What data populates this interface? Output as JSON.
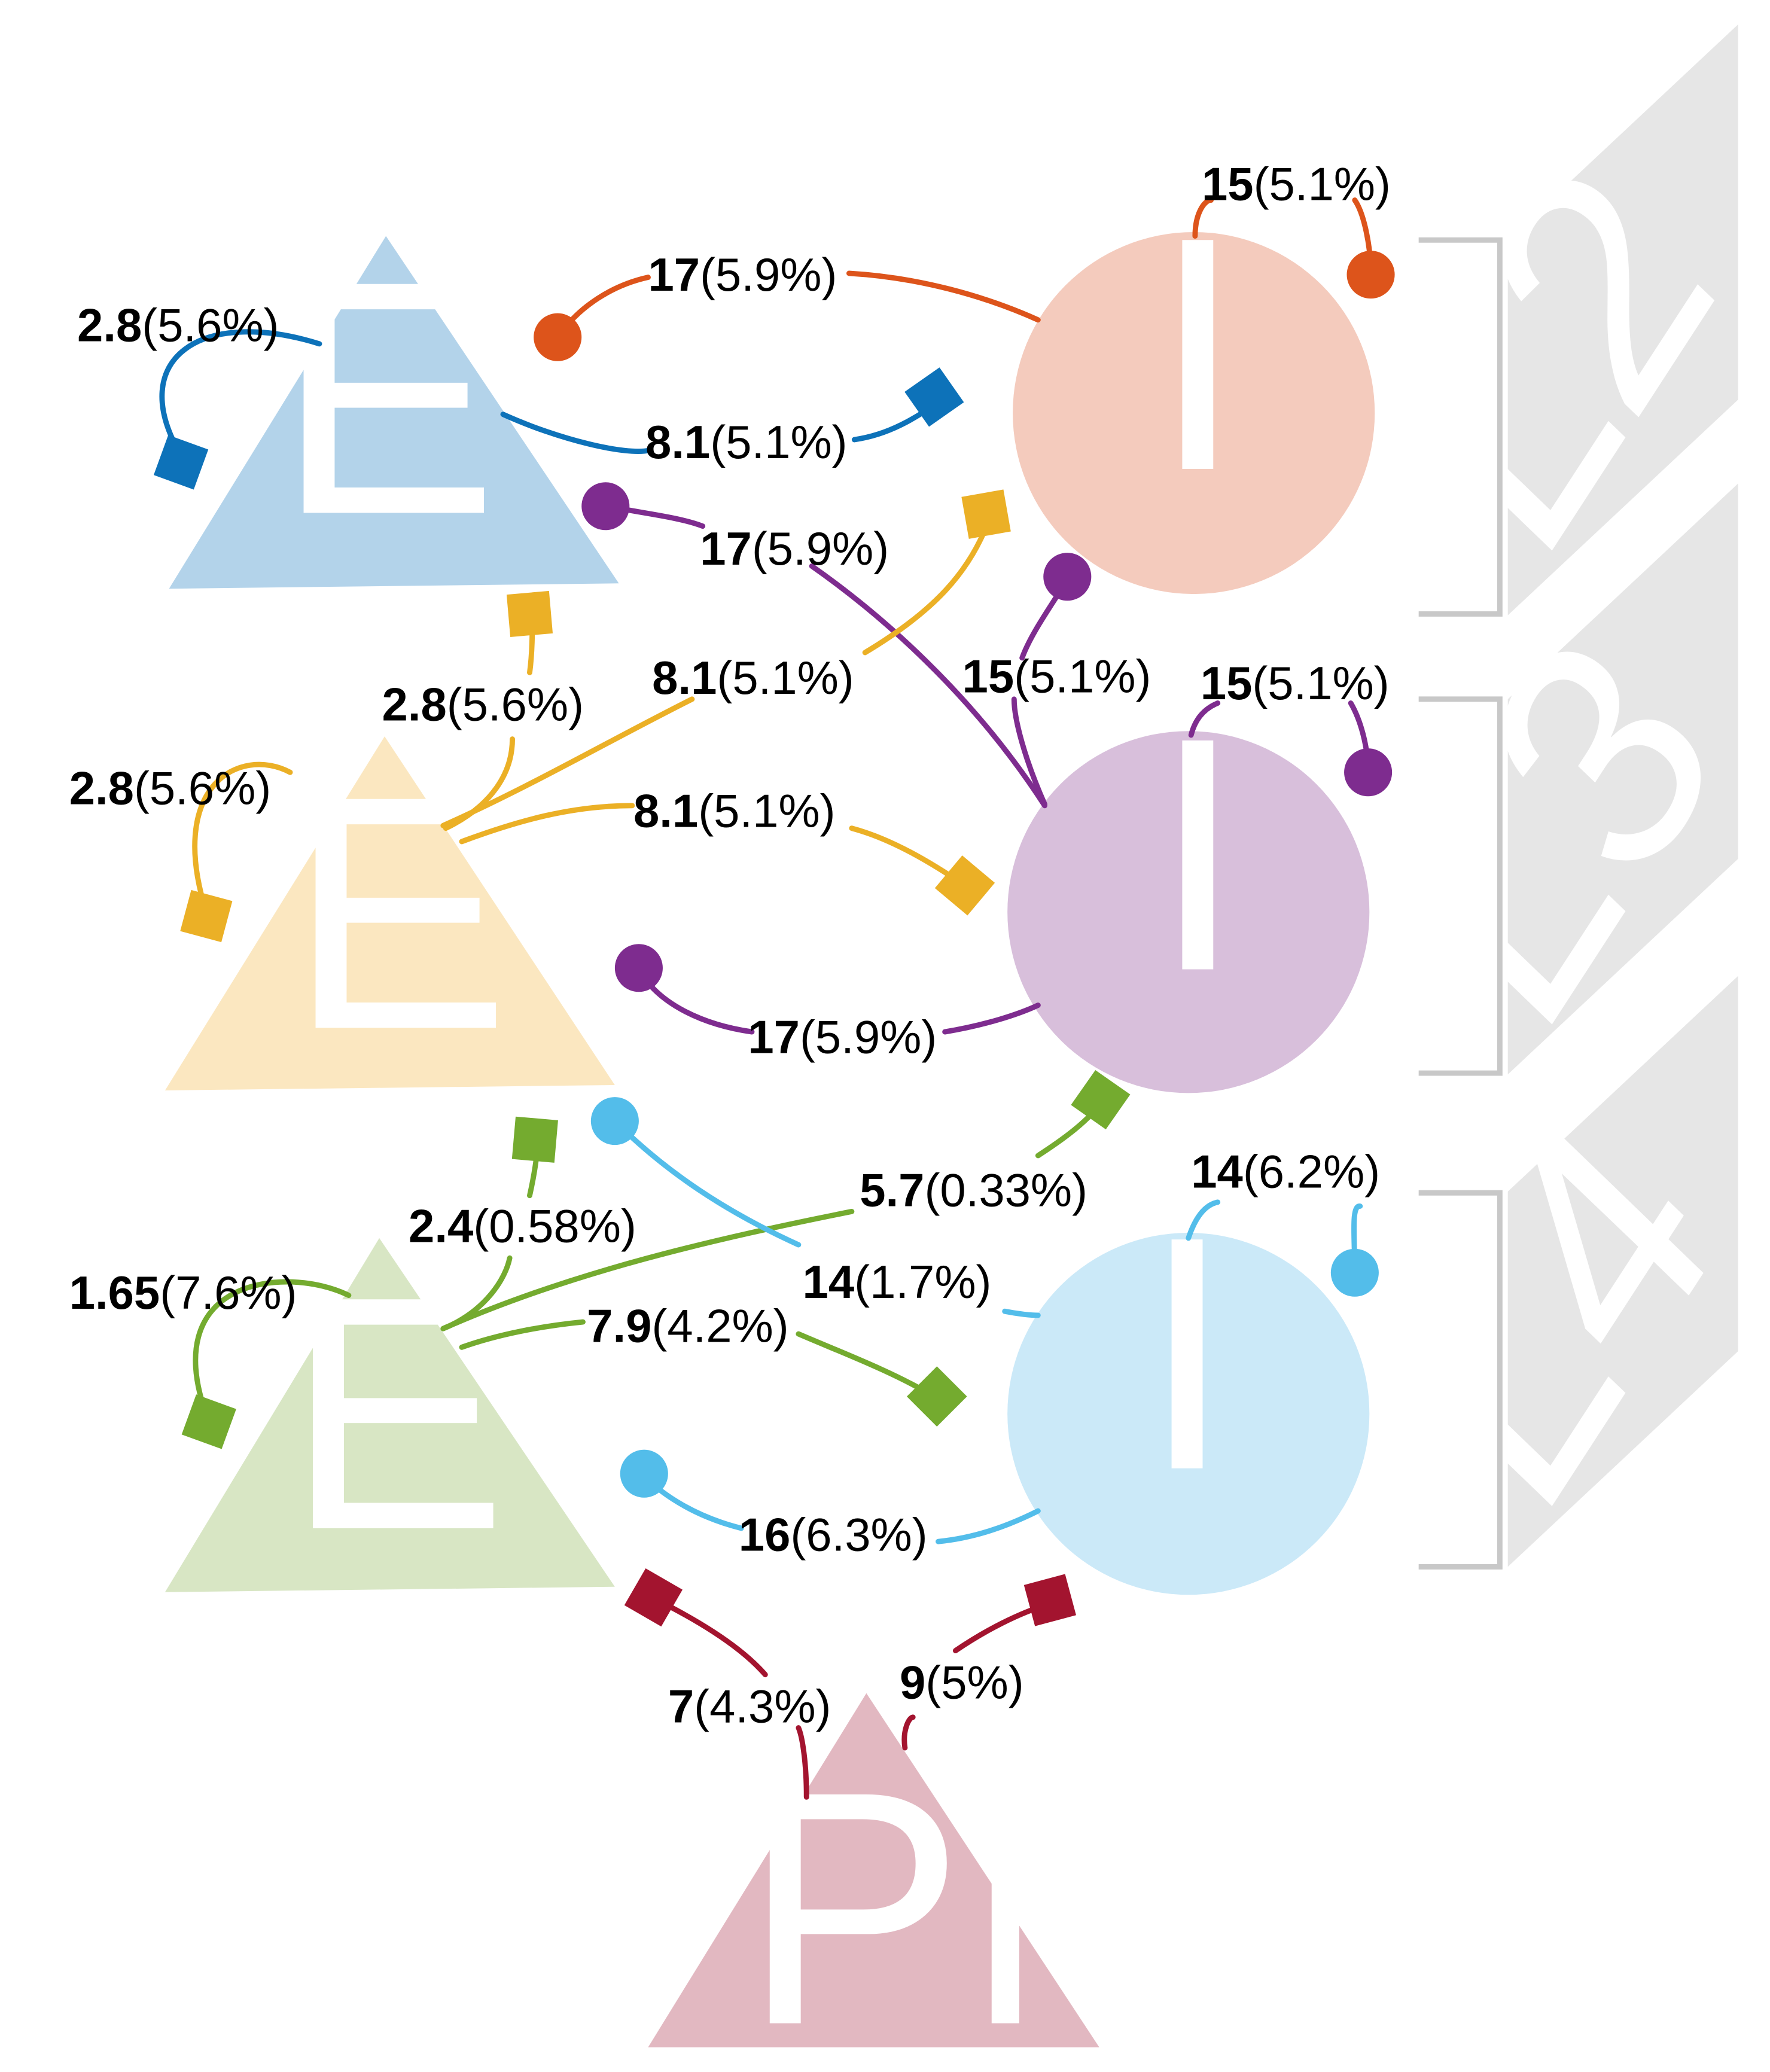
{
  "layers": [
    "L2",
    "L3",
    "L4"
  ],
  "nodes": {
    "e_l2": "E",
    "i_l2": "I",
    "e_l3": "E",
    "i_l3": "I",
    "e_l4": "E",
    "i_l4": "I",
    "vpm": "VPM"
  },
  "colors": {
    "e_l2": "#b3d3ea",
    "i_l2": "#f4cbbd",
    "e_l3": "#fbe7c0",
    "i_l3": "#d8bfdb",
    "e_l4": "#d8e6c4",
    "i_l4": "#cbe9f8",
    "vpm": "#e2b8c1",
    "edge_e_l2": "#0d72b9",
    "edge_i_l2": "#dd541b",
    "edge_e_l3": "#ebb026",
    "edge_i_l3": "#7e2c8f",
    "edge_e_l4": "#74ab2f",
    "edge_i_l4": "#53bdea",
    "edge_vpm": "#a3142f",
    "layer_box": "#e6e6e6",
    "bracket": "#c8c8c8"
  },
  "edges": [
    {
      "id": "e2_self",
      "bold": "2.8",
      "pct": "(5.6%)"
    },
    {
      "id": "e2_i2",
      "bold": "8.1",
      "pct": "(5.1%)"
    },
    {
      "id": "i2_e2",
      "bold": "17",
      "pct": "(5.9%)"
    },
    {
      "id": "i2_self",
      "bold": "15",
      "pct": "(5.1%)"
    },
    {
      "id": "i3_e2",
      "bold": "17",
      "pct": "(5.9%)"
    },
    {
      "id": "e3_e2",
      "bold": "2.8",
      "pct": "(5.6%)"
    },
    {
      "id": "e3_i2",
      "bold": "8.1",
      "pct": "(5.1%)"
    },
    {
      "id": "i3_i2",
      "bold": "15",
      "pct": "(5.1%)"
    },
    {
      "id": "i3_self",
      "bold": "15",
      "pct": "(5.1%)"
    },
    {
      "id": "e3_self",
      "bold": "2.8",
      "pct": "(5.6%)"
    },
    {
      "id": "e3_i3",
      "bold": "8.1",
      "pct": "(5.1%)"
    },
    {
      "id": "i3_e3",
      "bold": "17",
      "pct": "(5.9%)"
    },
    {
      "id": "e4_i3",
      "bold": "5.7",
      "pct": "(0.33%)"
    },
    {
      "id": "i4_self",
      "bold": "14",
      "pct": "(6.2%)"
    },
    {
      "id": "e4_e3",
      "bold": "2.4",
      "pct": "(0.58%)"
    },
    {
      "id": "i4_e3",
      "bold": "14",
      "pct": "(1.7%)"
    },
    {
      "id": "e4_self",
      "bold": "1.65",
      "pct": "(7.6%)"
    },
    {
      "id": "e4_i4",
      "bold": "7.9",
      "pct": "(4.2%)"
    },
    {
      "id": "i4_e4",
      "bold": "16",
      "pct": "(6.3%)"
    },
    {
      "id": "vpm_e4",
      "bold": "7",
      "pct": "(4.3%)"
    },
    {
      "id": "vpm_i4",
      "bold": "9",
      "pct": "(5%)"
    }
  ]
}
